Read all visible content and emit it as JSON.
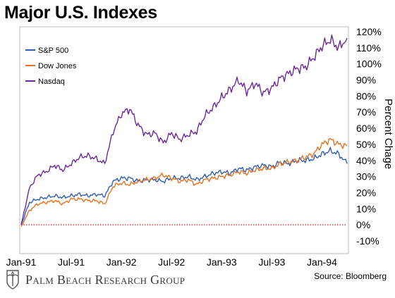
{
  "title": "Major U.S. Indexes",
  "footer": {
    "brand": "Palm Beach Research Group",
    "source": "Source: Bloomberg"
  },
  "colors": {
    "sp500": "#2f5fb3",
    "dow": "#e8731f",
    "nasdaq": "#6a2a9a",
    "baseline": "#d01818"
  },
  "chart_data": {
    "type": "line",
    "title": "Major U.S. Indexes",
    "ylabel": "Percent Chage",
    "y_axis_position": "right",
    "ylim": [
      -10,
      120
    ],
    "yticks": [
      -10,
      0,
      10,
      20,
      30,
      40,
      50,
      60,
      70,
      80,
      90,
      100,
      110,
      120
    ],
    "ytick_labels": [
      "-10%",
      "0%",
      "10%",
      "20%",
      "30%",
      "40%",
      "50%",
      "60%",
      "70%",
      "80%",
      "90%",
      "100%",
      "110%",
      "120%"
    ],
    "xlim": [
      "1991-01",
      "1994-04"
    ],
    "xticks": [
      "Jan-91",
      "Jul-91",
      "Jan-92",
      "Jul-92",
      "Jan-93",
      "Jul-93",
      "Jan-94"
    ],
    "legend_position": "top-left",
    "grid": false,
    "baseline": {
      "y": 0,
      "style": "dotted"
    },
    "x": [
      "1991-01",
      "1991-02",
      "1991-03",
      "1991-04",
      "1991-05",
      "1991-06",
      "1991-07",
      "1991-08",
      "1991-09",
      "1991-10",
      "1991-11",
      "1991-12",
      "1992-01",
      "1992-02",
      "1992-03",
      "1992-04",
      "1992-05",
      "1992-06",
      "1992-07",
      "1992-08",
      "1992-09",
      "1992-10",
      "1992-11",
      "1992-12",
      "1993-01",
      "1993-02",
      "1993-03",
      "1993-04",
      "1993-05",
      "1993-06",
      "1993-07",
      "1993-08",
      "1993-09",
      "1993-10",
      "1993-11",
      "1993-12",
      "1994-01",
      "1994-02",
      "1994-03",
      "1994-04"
    ],
    "series": [
      {
        "name": "S&P 500",
        "color": "#2f5fb3",
        "values": [
          0,
          14,
          16,
          17,
          18,
          17,
          18,
          19,
          18,
          19,
          18,
          27,
          29,
          29,
          27,
          28,
          28,
          27,
          29,
          29,
          30,
          28,
          30,
          32,
          33,
          32,
          35,
          34,
          36,
          37,
          36,
          39,
          38,
          40,
          40,
          41,
          44,
          46,
          44,
          38
        ]
      },
      {
        "name": "Dow Jones",
        "color": "#e8731f",
        "values": [
          -1,
          9,
          13,
          14,
          15,
          13,
          16,
          16,
          15,
          15,
          13,
          24,
          26,
          25,
          27,
          28,
          29,
          31,
          29,
          27,
          28,
          25,
          28,
          29,
          30,
          31,
          33,
          32,
          34,
          35,
          35,
          38,
          39,
          40,
          42,
          44,
          50,
          53,
          50,
          49
        ]
      },
      {
        "name": "Nasdaq",
        "color": "#6a2a9a",
        "values": [
          0,
          23,
          31,
          33,
          37,
          34,
          38,
          42,
          43,
          41,
          38,
          58,
          69,
          72,
          62,
          56,
          57,
          51,
          57,
          53,
          56,
          58,
          68,
          73,
          79,
          84,
          90,
          83,
          88,
          82,
          85,
          91,
          94,
          97,
          98,
          104,
          111,
          115,
          110,
          116
        ]
      }
    ]
  }
}
